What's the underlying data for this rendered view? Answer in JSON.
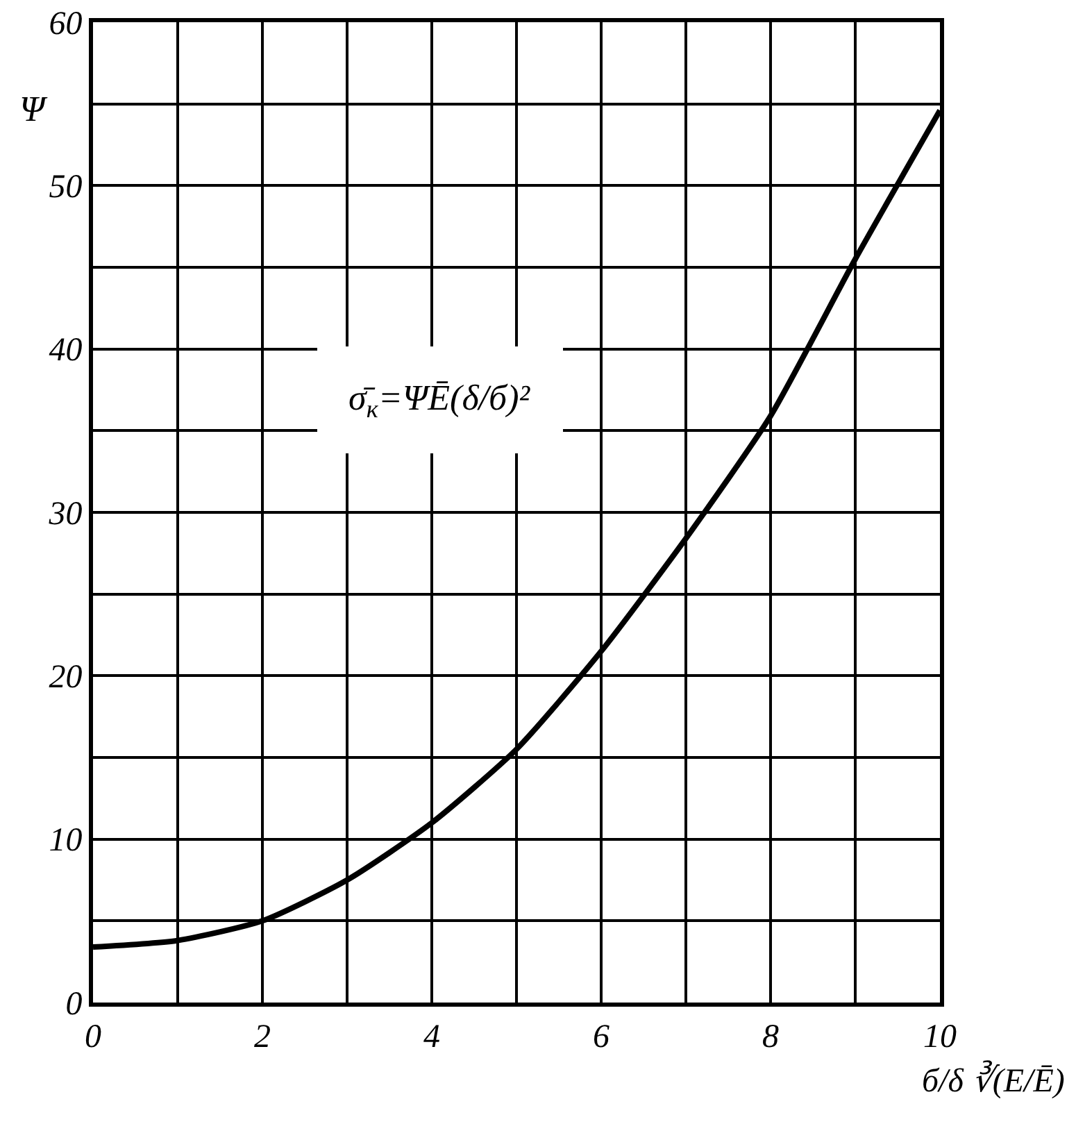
{
  "chart_data": {
    "type": "line",
    "xlabel": "б/δ ∛(E/Ē)",
    "ylabel": "Ψ",
    "annotations": [
      "σ̄$_{к}$=ΨĒ(δ/б)²"
    ],
    "x": [
      0,
      1,
      2,
      3,
      4,
      5,
      6,
      7,
      8,
      9,
      10
    ],
    "series": [
      {
        "color": "#000000",
        "values": [
          3.4,
          3.8,
          5,
          7.5,
          11,
          15.5,
          21.5,
          28.4,
          35.9,
          45.5,
          54.6
        ]
      }
    ],
    "xlim": [
      0,
      10
    ],
    "ylim": [
      0,
      60
    ],
    "xticks": [
      0,
      {
        "value": 1,
        "label": null
      },
      2,
      {
        "value": 3,
        "label": null
      },
      4,
      {
        "value": 5,
        "label": null
      },
      6,
      {
        "value": 7,
        "label": null
      },
      8,
      {
        "value": 9,
        "label": null
      },
      10
    ],
    "yticks": [
      0,
      {
        "value": 5,
        "label": null
      },
      10,
      {
        "value": 15,
        "label": null
      },
      20,
      {
        "value": 25,
        "label": null
      },
      30,
      {
        "value": 35,
        "label": null
      },
      40,
      {
        "value": 45,
        "label": null
      },
      50,
      {
        "value": 55,
        "label": null
      },
      60
    ],
    "grid": true,
    "marker": "none",
    "line_style": "solid"
  }
}
